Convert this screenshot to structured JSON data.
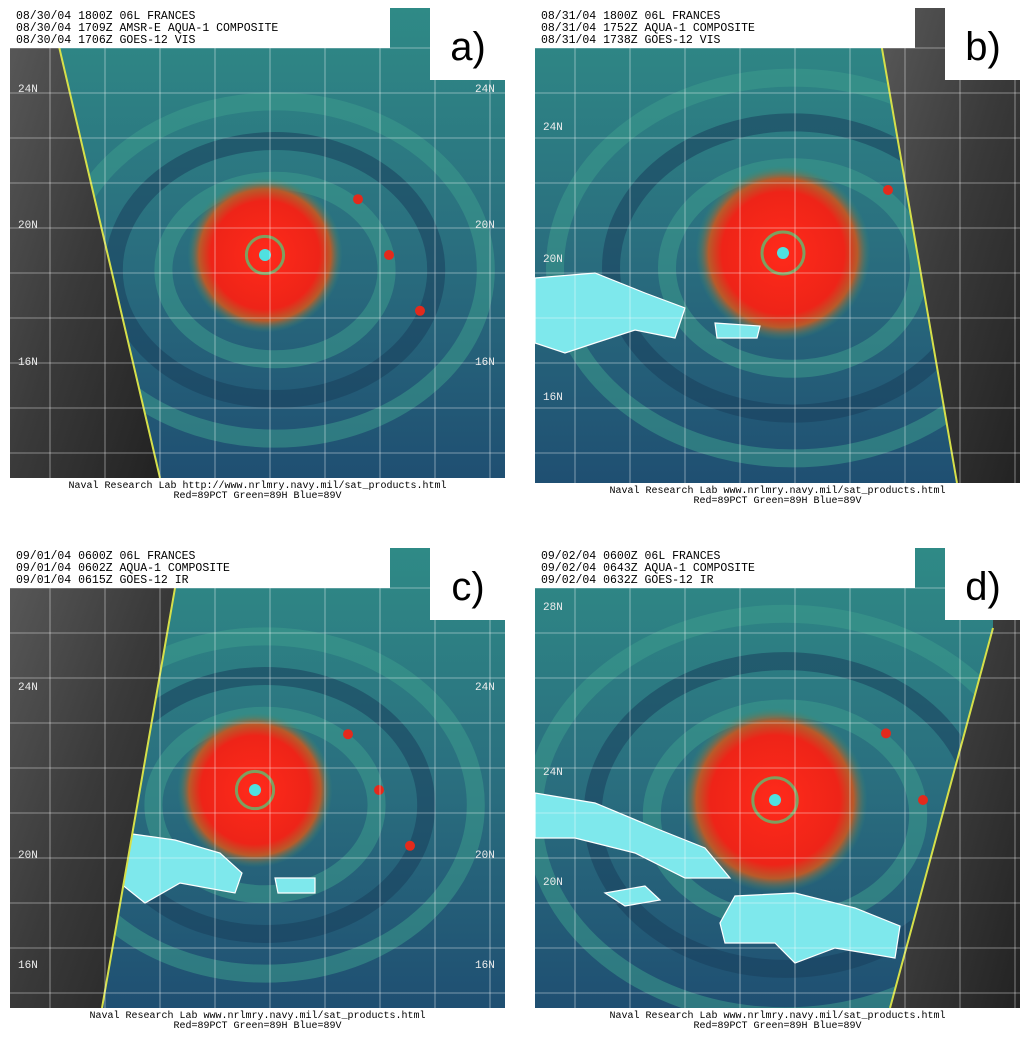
{
  "panels": [
    {
      "letter": "a)",
      "header": [
        "08/30/04 1800Z 06L FRANCES",
        "08/30/04 1709Z AMSR-E AQUA-1 COMPOSITE",
        "08/30/04 1706Z GOES-12 VIS"
      ],
      "left_labels": [
        "24N",
        "20N",
        "16N"
      ],
      "right_labels": [
        "24N",
        "20N",
        "16N"
      ],
      "footer": [
        "Naval Research Lab http://www.nrlmry.navy.mil/sat_products.html",
        "Red=89PCT Green=89H Blue=89V"
      ]
    },
    {
      "letter": "b)",
      "header": [
        "08/31/04 1800Z 06L FRANCES",
        "08/31/04 1752Z AQUA-1 COMPOSITE",
        "08/31/04 1738Z GOES-12 VIS"
      ],
      "left_labels": [
        "24N",
        "20N",
        "16N"
      ],
      "footer": [
        "Naval Research Lab www.nrlmry.navy.mil/sat_products.html",
        "Red=89PCT Green=89H Blue=89V"
      ]
    },
    {
      "letter": "c)",
      "header": [
        "09/01/04 0600Z 06L FRANCES",
        "09/01/04 0602Z AQUA-1 COMPOSITE",
        "09/01/04 0615Z GOES-12 IR"
      ],
      "left_labels": [
        "24N",
        "20N",
        "16N"
      ],
      "right_labels": [
        "24N",
        "20N",
        "16N"
      ],
      "footer": [
        "Naval Research Lab www.nrlmry.navy.mil/sat_products.html",
        "Red=89PCT Green=89H Blue=89V"
      ]
    },
    {
      "letter": "d)",
      "header": [
        "09/02/04 0600Z 06L FRANCES",
        "09/02/04 0643Z AQUA-1 COMPOSITE",
        "09/02/04 0632Z GOES-12 IR"
      ],
      "left_labels": [
        "28N",
        "24N",
        "20N"
      ],
      "footer": [
        "Naval Research Lab www.nrlmry.navy.mil/sat_products.html",
        "Red=89PCT Green=89H Blue=89V"
      ]
    }
  ]
}
